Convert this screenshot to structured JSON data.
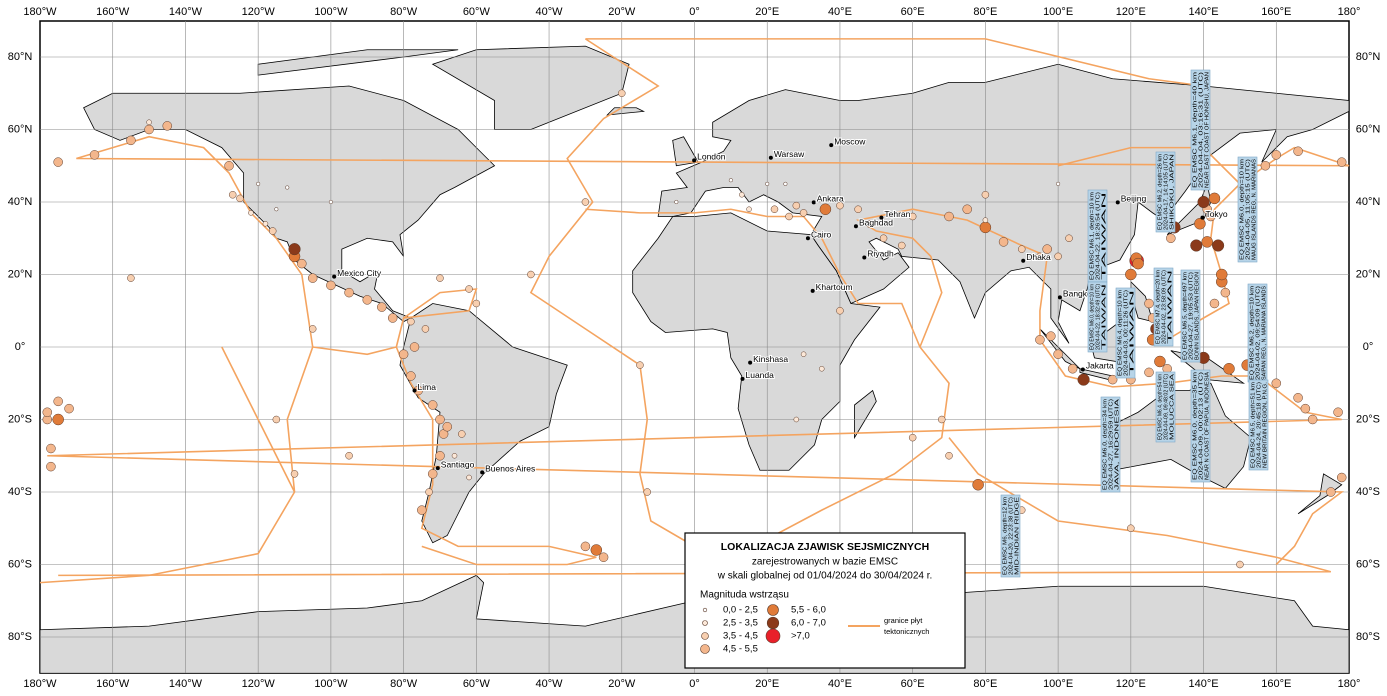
{
  "map": {
    "lon_labels": [
      "180°W",
      "160°W",
      "140°W",
      "120°W",
      "100°W",
      "80°W",
      "60°W",
      "40°W",
      "20°W",
      "0°",
      "20°E",
      "40°E",
      "60°E",
      "80°E",
      "100°E",
      "120°E",
      "140°E",
      "160°E",
      "180°"
    ],
    "lat_labels": [
      "80°N",
      "60°N",
      "40°N",
      "20°N",
      "0°",
      "20°S",
      "40°S",
      "60°S",
      "80°S"
    ],
    "cities": [
      {
        "name": "London",
        "lon": -0.1,
        "lat": 51.5
      },
      {
        "name": "Warsaw",
        "lon": 21,
        "lat": 52.2
      },
      {
        "name": "Moscow",
        "lon": 37.6,
        "lat": 55.7
      },
      {
        "name": "Ankara",
        "lon": 32.8,
        "lat": 39.9
      },
      {
        "name": "Baghdad",
        "lon": 44.4,
        "lat": 33.3
      },
      {
        "name": "Tehran",
        "lon": 51.4,
        "lat": 35.7
      },
      {
        "name": "Cairo",
        "lon": 31.2,
        "lat": 30
      },
      {
        "name": "Riyadh",
        "lon": 46.7,
        "lat": 24.7
      },
      {
        "name": "Khartoum",
        "lon": 32.5,
        "lat": 15.5
      },
      {
        "name": "Kinshasa",
        "lon": 15.3,
        "lat": -4.3
      },
      {
        "name": "Luanda",
        "lon": 13.2,
        "lat": -8.8
      },
      {
        "name": "Beijing",
        "lon": 116.4,
        "lat": 39.9
      },
      {
        "name": "Tokyo",
        "lon": 139.7,
        "lat": 35.7
      },
      {
        "name": "Dhaka",
        "lon": 90.4,
        "lat": 23.8
      },
      {
        "name": "Bangkok",
        "lon": 100.5,
        "lat": 13.7
      },
      {
        "name": "Jakarta",
        "lon": 106.8,
        "lat": -6.2
      },
      {
        "name": "Mexico City",
        "lon": -99.1,
        "lat": 19.4
      },
      {
        "name": "Lima",
        "lon": -77,
        "lat": -12
      },
      {
        "name": "Santiago",
        "lon": -70.6,
        "lat": -33.4
      },
      {
        "name": "Buenos Aires",
        "lon": -58.4,
        "lat": -34.6
      }
    ],
    "annotations": [
      {
        "lines": [
          "EQ EMSC M6.1, depth=10 km",
          "2024-04-22, 18:26:54 (UTC)",
          "TAIWAN"
        ]
      },
      {
        "lines": [
          "EQ EMSC M6.0, depth=10 km",
          "2024-04-22, 18:32:49 (UTC)",
          "TAIWAN"
        ]
      },
      {
        "lines": [
          "EQ EMSC M6.4, depth=10 km",
          "2024-04-03, 00:11:26 (UTC)",
          "TAIWAN"
        ]
      },
      {
        "lines": [
          "EQ EMSC M6.2, depth=26 km",
          "2024-04-17, 14:14:05 (UTC)",
          "SHIKOKU, JAPAN"
        ]
      },
      {
        "lines": [
          "EQ EMSC M6.1, depth=40 km",
          "2024-04-04, 03:16:31 (UTC)",
          "NEAR EAST COAST OF HONSHU, JAPAN"
        ]
      },
      {
        "lines": [
          "EQ EMSC M7.4, depth=20 km",
          "2024-04-02, 23:58:09 (UTC)",
          "TAIWAN"
        ]
      },
      {
        "lines": [
          "EQ EMSC M6.5, depth=497 km",
          "2024-04-27, 19:05:53 (UTC)",
          "BONIN ISLANDS, JAPAN REGION"
        ]
      },
      {
        "lines": [
          "EQ EMSC M6.0, depth=10 km",
          "2024-04-05, 11:05:15 (UTC)",
          "MAUG ISLANDS REG, N. MARIANAS"
        ]
      },
      {
        "lines": [
          "EQ EMSC M6.2, depth=10 km",
          "2024-04-02, 09:54:09 (UTC)",
          "SAIPAN REG., N. MARIANA ISLANDS"
        ]
      },
      {
        "lines": [
          "EQ EMSC M6.5, depth=51 km",
          "2024-04-24, 20:45:18 (UTC)",
          "NEW BRITAIN REGION, P.N.G."
        ]
      },
      {
        "lines": [
          "EQ EMSC M6.0, depth=34 km",
          "2024-04-27, 16:29:59 (UTC)",
          "JAVA, INDONESIA"
        ]
      },
      {
        "lines": [
          "EQ EMSC M6.4, depth=54 km",
          "2024-04-09, 09:48:02 (UTC)",
          "MOLUCCA SEA"
        ]
      },
      {
        "lines": [
          "EQ EMSC M6.0, depth=35 km",
          "2024-04-09, 00:02:13 (UTC)",
          "NEAR N COAST OF PAPUA, INDONESIA"
        ]
      },
      {
        "lines": [
          "EQ EMSC M6, depth=12 km",
          "2024-04-20, 22:23:38 (UTC)",
          "MID-INDIAN RIDGE"
        ]
      }
    ],
    "events": [
      [
        141,
        38,
        3
      ],
      [
        142,
        36,
        3
      ],
      [
        143,
        41,
        4
      ],
      [
        140,
        40,
        5
      ],
      [
        139,
        34,
        4
      ],
      [
        132,
        33,
        5
      ],
      [
        131,
        30,
        3
      ],
      [
        138,
        28,
        5
      ],
      [
        141,
        29,
        4
      ],
      [
        121.6,
        23.8,
        6
      ],
      [
        121.5,
        24.5,
        4
      ],
      [
        122,
        23,
        4
      ],
      [
        120,
        20,
        4
      ],
      [
        126,
        8,
        3
      ],
      [
        125,
        12,
        3
      ],
      [
        127,
        5,
        5
      ],
      [
        126,
        2,
        4
      ],
      [
        100,
        -2,
        3
      ],
      [
        104,
        -6,
        3
      ],
      [
        107,
        -9,
        5
      ],
      [
        115,
        -9,
        3
      ],
      [
        120,
        -9,
        3
      ],
      [
        125,
        -7,
        3
      ],
      [
        128,
        -4,
        4
      ],
      [
        130,
        -6,
        3
      ],
      [
        135,
        -3,
        3
      ],
      [
        140,
        -3,
        5
      ],
      [
        147,
        -6,
        4
      ],
      [
        152,
        -5,
        4
      ],
      [
        154,
        -6,
        5
      ],
      [
        160,
        -10,
        3
      ],
      [
        166,
        -14,
        3
      ],
      [
        168,
        -17,
        3
      ],
      [
        170,
        -20,
        3
      ],
      [
        177,
        -18,
        3
      ],
      [
        -178,
        -20,
        3
      ],
      [
        -175,
        -15,
        3
      ],
      [
        -177,
        -28,
        3
      ],
      [
        178,
        -36,
        3
      ],
      [
        175,
        -40,
        3
      ],
      [
        -172,
        -17,
        3
      ],
      [
        145,
        18,
        4
      ],
      [
        146,
        15,
        3
      ],
      [
        145,
        20,
        4
      ],
      [
        144,
        28,
        5
      ],
      [
        143,
        12,
        3
      ],
      [
        160,
        53,
        3
      ],
      [
        157,
        50,
        3
      ],
      [
        153,
        47,
        3
      ],
      [
        166,
        54,
        3
      ],
      [
        -175,
        51,
        3
      ],
      [
        -165,
        53,
        3
      ],
      [
        -155,
        57,
        3
      ],
      [
        -150,
        60,
        3
      ],
      [
        -145,
        61,
        3
      ],
      [
        178,
        51,
        3
      ],
      [
        -122,
        37,
        1
      ],
      [
        -118,
        34,
        1
      ],
      [
        -116,
        32,
        2
      ],
      [
        -125,
        41,
        2
      ],
      [
        -128,
        50,
        3
      ],
      [
        -110,
        25,
        4
      ],
      [
        -108,
        23,
        3
      ],
      [
        -105,
        19,
        3
      ],
      [
        -100,
        17,
        3
      ],
      [
        -95,
        15,
        3
      ],
      [
        -90,
        13,
        3
      ],
      [
        -86,
        11,
        3
      ],
      [
        -83,
        8,
        3
      ],
      [
        -78,
        7,
        2
      ],
      [
        -70,
        19,
        2
      ],
      [
        -62,
        16,
        2
      ],
      [
        -60,
        12,
        2
      ],
      [
        -80,
        -2,
        3
      ],
      [
        -78,
        -8,
        3
      ],
      [
        -76,
        -12,
        3
      ],
      [
        -72,
        -16,
        3
      ],
      [
        -70,
        -20,
        3
      ],
      [
        -69,
        -24,
        3
      ],
      [
        -70,
        -30,
        3
      ],
      [
        -72,
        -35,
        3
      ],
      [
        -73,
        -40,
        2
      ],
      [
        -68,
        -22,
        3
      ],
      [
        -64,
        -24,
        2
      ],
      [
        -75,
        -45,
        3
      ],
      [
        -77,
        0,
        3
      ],
      [
        -74,
        5,
        2
      ],
      [
        -27,
        -56,
        4
      ],
      [
        -25,
        -58,
        3
      ],
      [
        -30,
        -55,
        3
      ],
      [
        -30,
        40,
        2
      ],
      [
        -45,
        20,
        2
      ],
      [
        -15,
        -5,
        2
      ],
      [
        -13,
        -40,
        2
      ],
      [
        -20,
        70,
        2
      ],
      [
        13,
        42,
        1
      ],
      [
        15,
        38,
        1
      ],
      [
        22,
        38,
        2
      ],
      [
        26,
        36,
        2
      ],
      [
        28,
        39,
        2
      ],
      [
        30,
        37,
        2
      ],
      [
        36,
        38,
        4
      ],
      [
        40,
        39,
        2
      ],
      [
        45,
        38,
        2
      ],
      [
        48,
        34,
        2
      ],
      [
        52,
        30,
        2
      ],
      [
        57,
        28,
        2
      ],
      [
        60,
        36,
        2
      ],
      [
        70,
        36,
        3
      ],
      [
        75,
        38,
        3
      ],
      [
        80,
        42,
        2
      ],
      [
        85,
        29,
        3
      ],
      [
        90,
        27,
        2
      ],
      [
        95,
        25,
        2
      ],
      [
        97,
        27,
        3
      ],
      [
        100,
        25,
        2
      ],
      [
        103,
        30,
        2
      ],
      [
        95,
        2,
        3
      ],
      [
        98,
        3,
        3
      ],
      [
        30,
        -2,
        1
      ],
      [
        35,
        -6,
        1
      ],
      [
        40,
        10,
        2
      ],
      [
        28,
        -20,
        1
      ],
      [
        68,
        -20,
        2
      ],
      [
        78,
        -38,
        4
      ],
      [
        70,
        -30,
        2
      ],
      [
        60,
        -25,
        2
      ],
      [
        90,
        -45,
        2
      ],
      [
        120,
        -50,
        2
      ],
      [
        150,
        -60,
        2
      ],
      [
        80,
        33,
        4
      ],
      [
        -95,
        -30,
        2
      ],
      [
        -110,
        -35,
        2
      ],
      [
        -115,
        -20,
        2
      ],
      [
        -105,
        5,
        2
      ],
      [
        -127,
        42,
        2
      ],
      [
        -155,
        19,
        2
      ],
      [
        -178,
        -18,
        3
      ],
      [
        -177,
        -33,
        3
      ],
      [
        10,
        46,
        0
      ],
      [
        20,
        45,
        0
      ],
      [
        25,
        45,
        0
      ],
      [
        -115,
        38,
        0
      ],
      [
        -120,
        45,
        0
      ],
      [
        100,
        45,
        0
      ],
      [
        110,
        35,
        0
      ],
      [
        -100,
        40,
        0
      ],
      [
        80,
        35,
        1
      ],
      [
        -5,
        40,
        0
      ],
      [
        -112,
        44,
        0
      ],
      [
        -150,
        62,
        1
      ],
      [
        -66,
        -30,
        1
      ],
      [
        -62,
        -36,
        1
      ],
      [
        -110,
        27,
        5
      ],
      [
        -175,
        -20,
        4
      ]
    ]
  },
  "legend": {
    "title": "LOKALIZACJA ZJAWISK SEJSMICZNYCH",
    "subtitle": [
      "zarejestrowanych w bazie EMSC",
      "w skali globalnej od 01/04/2024 do 30/04/2024 r."
    ],
    "magnitude_title": "Magnituda wstrząsu",
    "classes": [
      {
        "label": "0,0 - 2,5",
        "color": "#ffffff"
      },
      {
        "label": "2,5 - 3,5",
        "color": "#fce8d8"
      },
      {
        "label": "3,5 - 4,5",
        "color": "#f7cfb0"
      },
      {
        "label": "4,5 - 5,5",
        "color": "#f3b68c"
      },
      {
        "label": "5,5 - 6,0",
        "color": "#e07b39"
      },
      {
        "label": "6,0 - 7,0",
        "color": "#8b3a1a"
      },
      {
        "label": ">7,0",
        "color": "#e8202a"
      }
    ],
    "plate_label": [
      "granice płyt",
      "tektonicznych"
    ],
    "plate_color": "#f4a460"
  }
}
